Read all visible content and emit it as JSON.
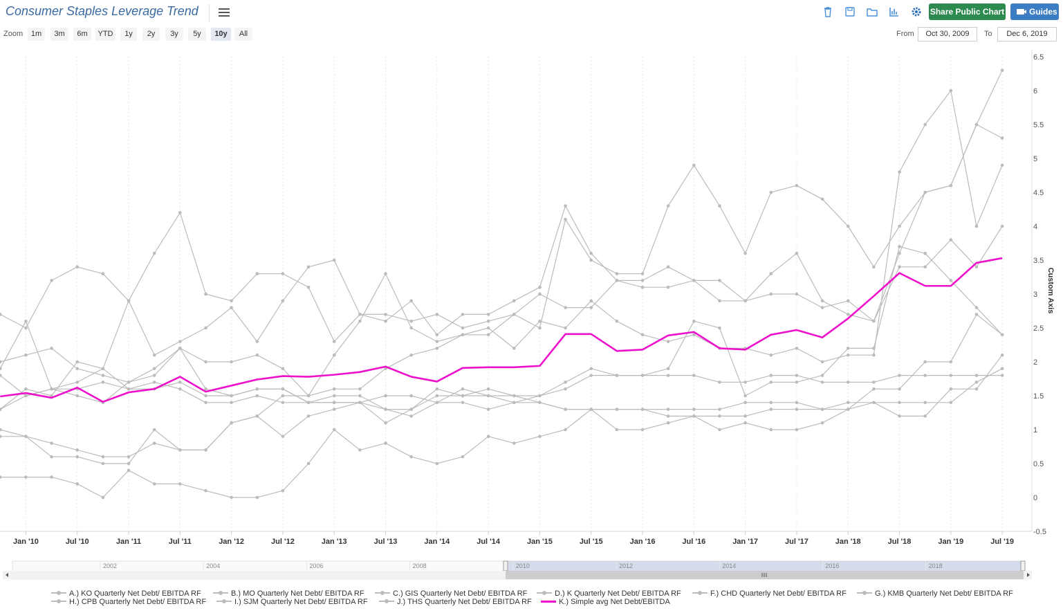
{
  "header": {
    "title": "Consumer Staples Leverage Trend",
    "share_label": "Share Public Chart",
    "guides_label": "Guides",
    "tool_icons": [
      "trash-icon",
      "save-icon",
      "folder-icon",
      "bar-chart-icon",
      "gear-icon"
    ]
  },
  "zoom": {
    "label": "Zoom",
    "buttons": [
      "1m",
      "3m",
      "6m",
      "YTD",
      "1y",
      "2y",
      "3y",
      "5y",
      "10y",
      "All"
    ],
    "active": "10y"
  },
  "range": {
    "from_label": "From",
    "from_value": "Oct 30, 2009",
    "to_label": "To",
    "to_value": "Dec 6, 2019"
  },
  "navigator": {
    "years": [
      "2002",
      "2004",
      "2006",
      "2008",
      "2010",
      "2012",
      "2014",
      "2016",
      "2018"
    ]
  },
  "colors": {
    "series_grey": "#bbbbbb",
    "average_line": "#ee11cc",
    "share_button": "#2d8a4e",
    "guides_button": "#3c7cc3",
    "title": "#3b6aa0"
  },
  "chart_data": {
    "type": "line",
    "title": "Consumer Staples Leverage Trend",
    "ylabel": "Custom Axis",
    "xlabel": "",
    "ylim": [
      -0.5,
      6.5
    ],
    "y_ticks": [
      "-0.5",
      "0",
      "0.5",
      "1",
      "1.5",
      "2",
      "2.5",
      "3",
      "3.5",
      "4",
      "4.5",
      "5",
      "5.5",
      "6",
      "6.5"
    ],
    "x_ticks": [
      "Jan '10",
      "Jul '10",
      "Jan '11",
      "Jul '11",
      "Jan '12",
      "Jul '12",
      "Jan '13",
      "Jul '13",
      "Jan '14",
      "Jul '14",
      "Jan '15",
      "Jul '15",
      "Jan '16",
      "Jul '16",
      "Jan '17",
      "Jul '17",
      "Jan '18",
      "Jul '18",
      "Jan '19",
      "Jul '19"
    ],
    "x_tick_values": [
      2010.0,
      2010.5,
      2011.0,
      2011.5,
      2012.0,
      2012.5,
      2013.0,
      2013.5,
      2014.0,
      2014.5,
      2015.0,
      2015.5,
      2016.0,
      2016.5,
      2017.0,
      2017.5,
      2018.0,
      2018.5,
      2019.0,
      2019.5
    ],
    "grid": true,
    "legend_position": "bottom",
    "series": [
      {
        "name": "A.) KO Quarterly Net Debt/ EBITDA RF",
        "color": "#bbbbbb",
        "x": [
          2009.75,
          2010.0,
          2010.25,
          2010.5,
          2010.75,
          2011.0,
          2011.25,
          2011.5,
          2011.75,
          2012.0,
          2012.25,
          2012.5,
          2012.75,
          2013.0,
          2013.25,
          2013.5,
          2013.75,
          2014.0,
          2014.25,
          2014.5,
          2014.75,
          2015.0,
          2015.25,
          2015.5,
          2015.75,
          2016.0,
          2016.25,
          2016.5,
          2016.75,
          2017.0,
          2017.25,
          2017.5,
          2017.75,
          2018.0,
          2018.25,
          2018.5,
          2018.75,
          2019.0,
          2019.25,
          2019.5
        ],
        "values": [
          1.9,
          2.6,
          1.6,
          1.7,
          1.9,
          2.9,
          2.1,
          2.3,
          2.5,
          2.8,
          2.3,
          2.9,
          3.4,
          3.5,
          2.7,
          2.6,
          2.9,
          2.4,
          2.7,
          2.7,
          2.9,
          3.1,
          4.3,
          3.6,
          3.2,
          3.1,
          3.1,
          3.2,
          2.9,
          2.9,
          3.0,
          3.0,
          2.8,
          2.9,
          2.6,
          3.4,
          3.4,
          3.8,
          3.4,
          4.0
        ]
      },
      {
        "name": "B.) MO Quarterly Net Debt/ EBITDA RF",
        "color": "#bbbbbb",
        "x": [
          2009.75,
          2010.0,
          2010.25,
          2010.5,
          2010.75,
          2011.0,
          2011.25,
          2011.5,
          2011.75,
          2012.0,
          2012.25,
          2012.5,
          2012.75,
          2013.0,
          2013.25,
          2013.5,
          2013.75,
          2014.0,
          2014.25,
          2014.5,
          2014.75,
          2015.0,
          2015.25,
          2015.5,
          2015.75,
          2016.0,
          2016.25,
          2016.5,
          2016.75,
          2017.0,
          2017.25,
          2017.5,
          2017.75,
          2018.0,
          2018.25,
          2018.5,
          2018.75,
          2019.0,
          2019.25,
          2019.5
        ],
        "values": [
          1.0,
          0.9,
          0.8,
          0.7,
          0.6,
          0.6,
          0.8,
          0.7,
          0.7,
          1.1,
          1.2,
          0.9,
          1.2,
          1.3,
          1.4,
          1.1,
          1.3,
          1.6,
          1.5,
          1.5,
          1.5,
          1.4,
          1.3,
          1.3,
          1.3,
          1.3,
          1.3,
          1.3,
          1.3,
          1.4,
          1.4,
          1.4,
          1.3,
          1.3,
          1.6,
          1.6,
          2.0,
          2.0,
          2.7,
          2.4
        ]
      },
      {
        "name": "C.) GIS Quarterly Net Debt/ EBITDA RF",
        "color": "#bbbbbb",
        "x": [
          2009.75,
          2010.0,
          2010.25,
          2010.5,
          2010.75,
          2011.0,
          2011.25,
          2011.5,
          2011.75,
          2012.0,
          2012.25,
          2012.5,
          2012.75,
          2013.0,
          2013.25,
          2013.5,
          2013.75,
          2014.0,
          2014.25,
          2014.5,
          2014.75,
          2015.0,
          2015.25,
          2015.5,
          2015.75,
          2016.0,
          2016.25,
          2016.5,
          2016.75,
          2017.0,
          2017.25,
          2017.5,
          2017.75,
          2018.0,
          2018.25,
          2018.5,
          2018.75,
          2019.0,
          2019.25,
          2019.5
        ],
        "values": [
          2.0,
          2.1,
          2.2,
          1.9,
          1.8,
          1.7,
          1.8,
          2.2,
          1.6,
          1.5,
          1.6,
          1.6,
          1.4,
          1.5,
          1.5,
          1.3,
          1.3,
          1.5,
          1.5,
          1.6,
          1.5,
          1.5,
          1.6,
          1.8,
          1.8,
          1.8,
          1.8,
          1.8,
          1.7,
          1.7,
          1.8,
          1.8,
          1.7,
          1.7,
          1.7,
          1.8,
          1.8,
          1.8,
          1.8,
          1.8
        ]
      },
      {
        "name": "D.) K Quarterly Net Debt/ EBITDA RF",
        "color": "#bbbbbb",
        "x": [
          2009.75,
          2010.0,
          2010.25,
          2010.5,
          2010.75,
          2011.0,
          2011.25,
          2011.5,
          2011.75,
          2012.0,
          2012.25,
          2012.5,
          2012.75,
          2013.0,
          2013.25,
          2013.5,
          2013.75,
          2014.0,
          2014.25,
          2014.5,
          2014.75,
          2015.0,
          2015.25,
          2015.5,
          2015.75,
          2016.0,
          2016.25,
          2016.5,
          2016.75,
          2017.0,
          2017.25,
          2017.5,
          2017.75,
          2018.0,
          2018.25,
          2018.5,
          2018.75,
          2019.0,
          2019.25,
          2019.5
        ],
        "values": [
          1.8,
          1.5,
          1.6,
          1.6,
          1.7,
          1.6,
          1.6,
          1.7,
          1.5,
          1.5,
          1.6,
          1.6,
          1.4,
          1.4,
          1.4,
          1.5,
          1.5,
          1.4,
          1.4,
          1.3,
          1.4,
          1.5,
          1.7,
          1.9,
          1.8,
          1.8,
          1.9,
          2.6,
          2.5,
          1.5,
          1.7,
          1.7,
          1.8,
          2.2,
          2.2,
          3.7,
          3.6,
          3.2,
          2.8,
          2.4
        ]
      },
      {
        "name": "F.) CHD Quarterly Net Debt/ EBITDA RF",
        "color": "#bbbbbb",
        "x": [
          2009.75,
          2010.0,
          2010.25,
          2010.5,
          2010.75,
          2011.0,
          2011.25,
          2011.5,
          2011.75,
          2012.0,
          2012.25,
          2012.5,
          2012.75,
          2013.0,
          2013.25,
          2013.5,
          2013.75,
          2014.0,
          2014.25,
          2014.5,
          2014.75,
          2015.0,
          2015.25,
          2015.5,
          2015.75,
          2016.0,
          2016.25,
          2016.5,
          2016.75,
          2017.0,
          2017.25,
          2017.5,
          2017.75,
          2018.0,
          2018.25,
          2018.5,
          2018.75,
          2019.0,
          2019.25,
          2019.5
        ],
        "values": [
          0.3,
          0.3,
          0.3,
          0.2,
          0.0,
          0.4,
          0.2,
          0.2,
          0.1,
          0.0,
          0.0,
          0.1,
          0.5,
          1.0,
          0.7,
          0.8,
          0.6,
          0.5,
          0.6,
          0.9,
          0.8,
          0.9,
          1.0,
          1.3,
          1.0,
          1.0,
          1.1,
          1.2,
          1.0,
          1.1,
          1.0,
          1.0,
          1.1,
          1.3,
          1.4,
          1.2,
          1.2,
          1.6,
          1.6,
          2.1
        ]
      },
      {
        "name": "G.) KMB Quarterly Net Debt/ EBITDA RF",
        "color": "#bbbbbb",
        "x": [
          2009.75,
          2010.0,
          2010.25,
          2010.5,
          2010.75,
          2011.0,
          2011.25,
          2011.5,
          2011.75,
          2012.0,
          2012.25,
          2012.5,
          2012.75,
          2013.0,
          2013.25,
          2013.5,
          2013.75,
          2014.0,
          2014.25,
          2014.5,
          2014.75,
          2015.0,
          2015.25,
          2015.5,
          2015.75,
          2016.0,
          2016.25,
          2016.5,
          2016.75,
          2017.0,
          2017.25,
          2017.5,
          2017.75,
          2018.0,
          2018.25,
          2018.5,
          2018.75,
          2019.0,
          2019.25,
          2019.5
        ],
        "values": [
          1.3,
          1.6,
          1.5,
          2.0,
          1.9,
          1.6,
          1.7,
          1.6,
          1.4,
          1.4,
          1.5,
          1.4,
          1.4,
          1.4,
          1.4,
          1.3,
          1.2,
          1.4,
          1.6,
          1.5,
          1.4,
          1.4,
          1.3,
          1.3,
          1.3,
          1.3,
          1.2,
          1.2,
          1.2,
          1.2,
          1.3,
          1.3,
          1.3,
          1.4,
          1.4,
          1.4,
          1.4,
          1.4,
          1.7,
          1.9
        ]
      },
      {
        "name": "H.) CPB Quarterly Net Debt/ EBITDA RF",
        "color": "#bbbbbb",
        "x": [
          2009.75,
          2010.0,
          2010.25,
          2010.5,
          2010.75,
          2011.0,
          2011.25,
          2011.5,
          2011.75,
          2012.0,
          2012.25,
          2012.5,
          2012.75,
          2013.0,
          2013.25,
          2013.5,
          2013.75,
          2014.0,
          2014.25,
          2014.5,
          2014.75,
          2015.0,
          2015.25,
          2015.5,
          2015.75,
          2016.0,
          2016.25,
          2016.5,
          2016.75,
          2017.0,
          2017.25,
          2017.5,
          2017.75,
          2018.0,
          2018.25,
          2018.5,
          2018.75,
          2019.0,
          2019.25,
          2019.5
        ],
        "values": [
          2.7,
          2.5,
          3.2,
          3.4,
          3.3,
          2.9,
          3.6,
          4.2,
          3.0,
          2.9,
          3.3,
          3.3,
          3.1,
          2.3,
          2.7,
          2.7,
          2.6,
          2.7,
          2.5,
          2.6,
          2.7,
          3.0,
          2.8,
          2.8,
          3.2,
          3.2,
          3.4,
          3.2,
          3.2,
          2.9,
          3.3,
          3.6,
          2.9,
          2.7,
          2.6,
          3.6,
          4.5,
          4.6,
          5.5,
          5.3
        ]
      },
      {
        "name": "I.) SJM Quarterly Net Debt/ EBITDA RF",
        "color": "#bbbbbb",
        "x": [
          2009.75,
          2010.0,
          2010.25,
          2010.5,
          2010.75,
          2011.0,
          2011.25,
          2011.5,
          2011.75,
          2012.0,
          2012.25,
          2012.5,
          2012.75,
          2013.0,
          2013.25,
          2013.5,
          2013.75,
          2014.0,
          2014.25,
          2014.5,
          2014.75,
          2015.0,
          2015.25,
          2015.5,
          2015.75,
          2016.0,
          2016.25,
          2016.5,
          2016.75,
          2017.0,
          2017.25,
          2017.5,
          2017.75,
          2018.0,
          2018.25,
          2018.5,
          2018.75,
          2019.0,
          2019.25,
          2019.5
        ],
        "values": [
          0.9,
          0.9,
          0.6,
          0.6,
          0.5,
          0.5,
          1.0,
          0.7,
          0.7,
          1.1,
          1.2,
          1.5,
          1.5,
          1.6,
          1.6,
          1.9,
          2.1,
          2.2,
          2.4,
          2.4,
          2.7,
          2.5,
          4.1,
          3.5,
          3.3,
          3.3,
          4.3,
          4.9,
          4.3,
          3.6,
          4.5,
          4.6,
          4.4,
          4.0,
          3.4,
          4.0,
          4.5,
          4.6,
          5.5,
          6.3
        ]
      },
      {
        "name": "J.) THS Quarterly Net Debt/ EBITDA RF",
        "color": "#bbbbbb",
        "x": [
          2009.75,
          2010.0,
          2010.25,
          2010.5,
          2010.75,
          2011.0,
          2011.25,
          2011.5,
          2011.75,
          2012.0,
          2012.25,
          2012.5,
          2012.75,
          2013.0,
          2013.25,
          2013.5,
          2013.75,
          2014.0,
          2014.25,
          2014.5,
          2014.75,
          2015.0,
          2015.25,
          2015.5,
          2015.75,
          2016.0,
          2016.25,
          2016.5,
          2016.75,
          2017.0,
          2017.25,
          2017.5,
          2017.75,
          2018.0,
          2018.25,
          2018.5,
          2018.75,
          2019.0,
          2019.25,
          2019.5
        ],
        "values": [
          1.3,
          1.5,
          1.6,
          1.5,
          1.4,
          1.7,
          1.9,
          2.2,
          2.0,
          2.0,
          2.1,
          1.9,
          1.5,
          2.1,
          2.6,
          3.3,
          2.5,
          2.3,
          2.4,
          2.5,
          2.2,
          2.6,
          2.5,
          2.9,
          2.6,
          2.4,
          2.3,
          2.4,
          2.2,
          2.2,
          2.1,
          2.2,
          2.0,
          2.1,
          2.1,
          4.8,
          5.5,
          6.0,
          4.0,
          4.9
        ]
      },
      {
        "name": "K.) Simple avg Net Debt/EBITDA",
        "color": "#ee11cc",
        "x": [
          2009.75,
          2010.0,
          2010.25,
          2010.5,
          2010.75,
          2011.0,
          2011.25,
          2011.5,
          2011.75,
          2012.0,
          2012.25,
          2012.5,
          2012.75,
          2013.0,
          2013.25,
          2013.5,
          2013.75,
          2014.0,
          2014.25,
          2014.5,
          2014.75,
          2015.0,
          2015.25,
          2015.5,
          2015.75,
          2016.0,
          2016.25,
          2016.5,
          2016.75,
          2017.0,
          2017.25,
          2017.5,
          2017.75,
          2018.0,
          2018.25,
          2018.5,
          2018.75,
          2019.0,
          2019.25,
          2019.5
        ],
        "values": [
          1.49,
          1.54,
          1.47,
          1.62,
          1.41,
          1.55,
          1.6,
          1.78,
          1.56,
          1.65,
          1.74,
          1.79,
          1.78,
          1.81,
          1.85,
          1.93,
          1.78,
          1.71,
          1.91,
          1.92,
          1.92,
          1.94,
          2.41,
          2.41,
          2.16,
          2.18,
          2.39,
          2.44,
          2.2,
          2.18,
          2.4,
          2.47,
          2.36,
          2.64,
          2.97,
          3.31,
          3.12,
          3.12,
          3.46,
          3.53
        ]
      }
    ]
  }
}
